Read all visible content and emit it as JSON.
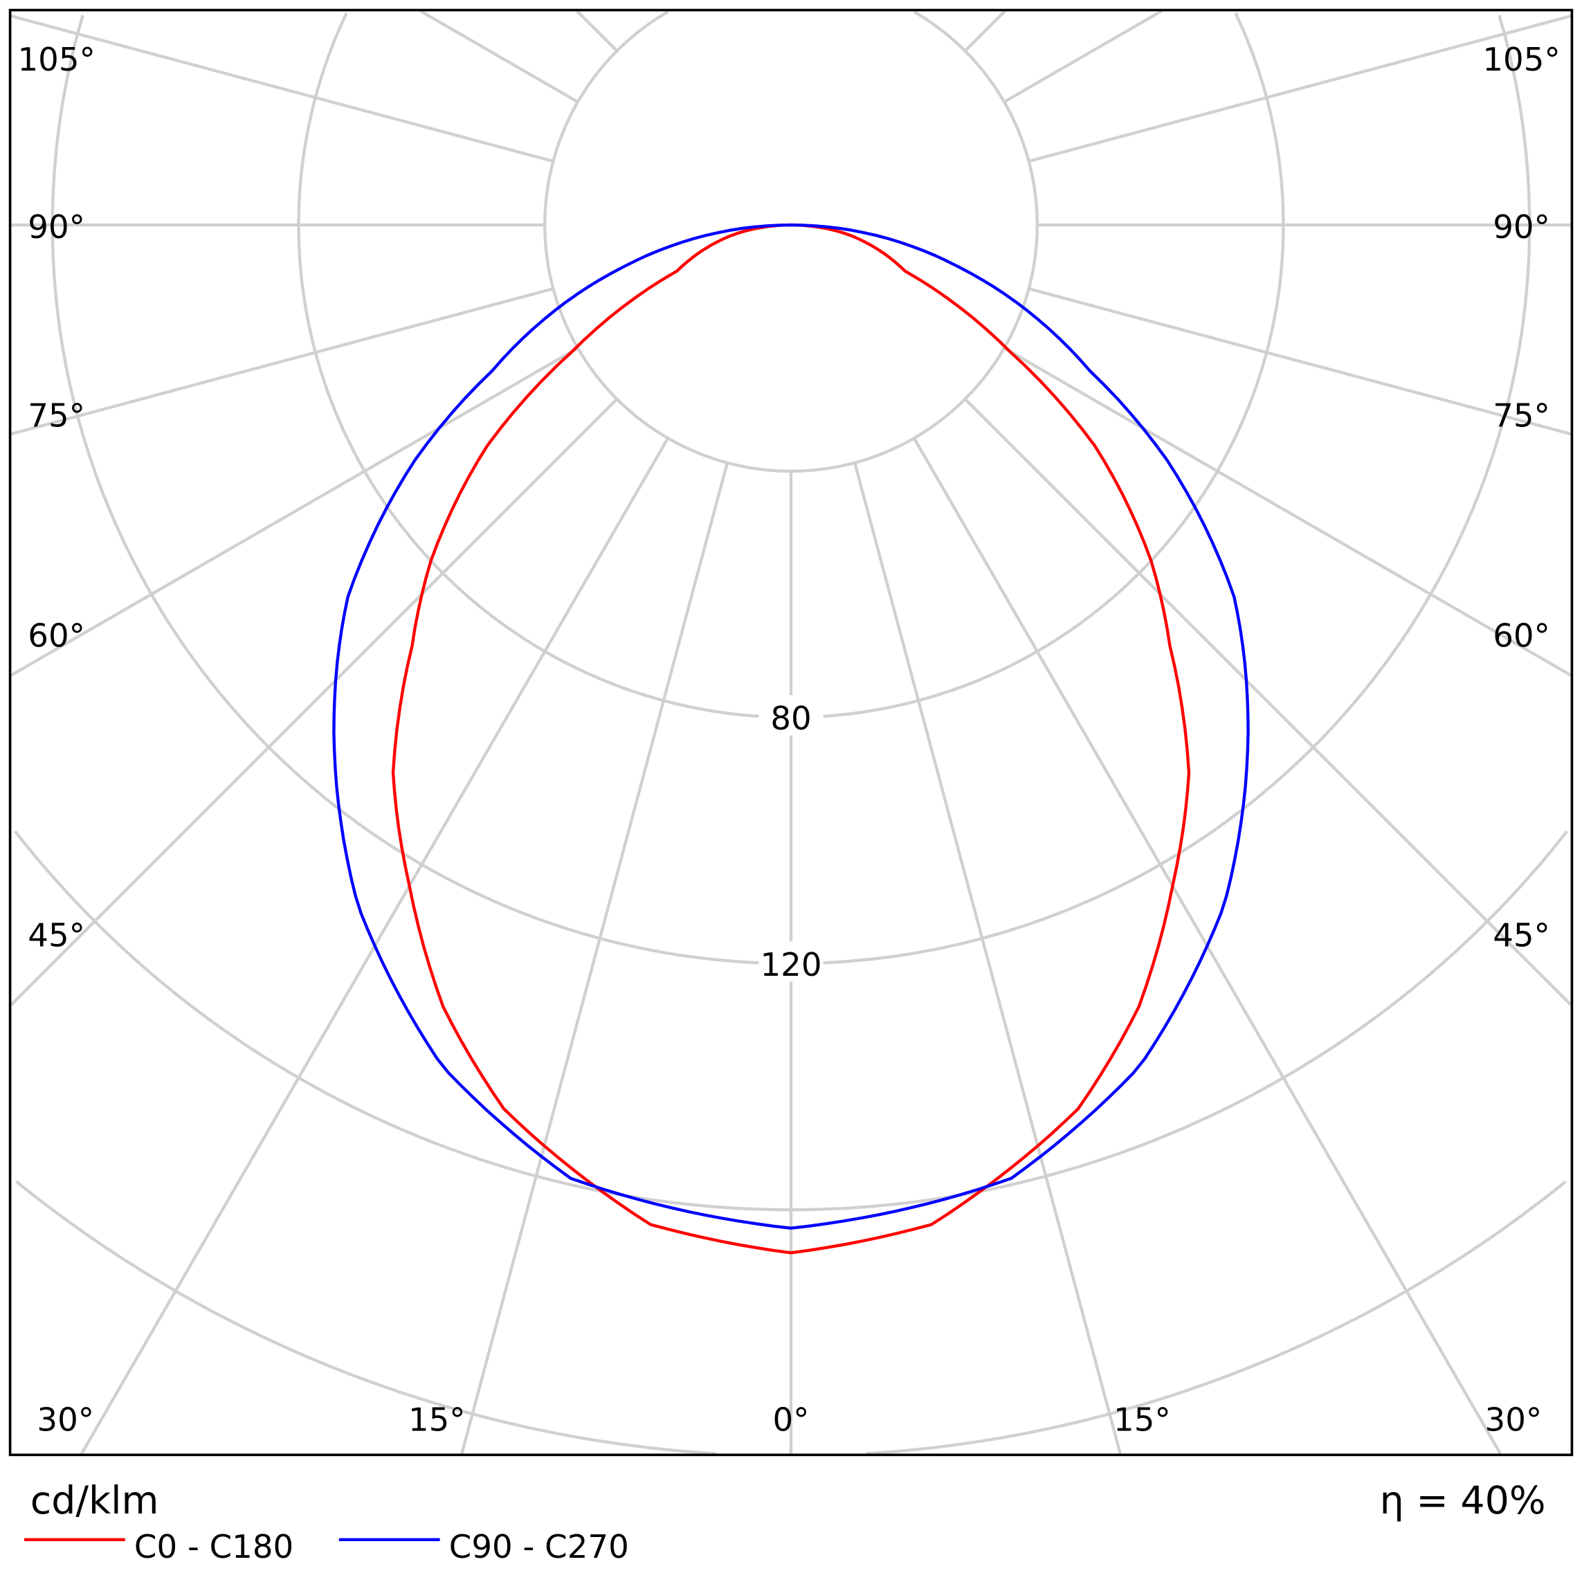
{
  "chart_data": {
    "type": "polar",
    "unit_label": "cd/klm",
    "efficiency_label": "η = 40%",
    "radial_ticks": [
      {
        "value": 80,
        "label": "80"
      },
      {
        "value": 120,
        "label": "120"
      }
    ],
    "ring_step": 40,
    "grid": true,
    "angle_step_deg": 15,
    "angle_labels_left": [
      "105°",
      "90°",
      "75°",
      "60°",
      "45°",
      "30°",
      "15°"
    ],
    "angle_labels_right": [
      "105°",
      "90°",
      "75°",
      "60°",
      "45°",
      "30°",
      "15°"
    ],
    "angle_label_center": "0°",
    "legend_position": "bottom-left",
    "series": [
      {
        "name": "C0 - C180",
        "color": "#ff0000",
        "angles_deg": [
          0,
          8,
          18,
          24,
          30,
          36,
          42,
          47,
          54,
          60,
          68,
          81,
          90
        ],
        "values": [
          167,
          164,
          151,
          139,
          124,
          110,
          92,
          80,
          61,
          41,
          20,
          9,
          0
        ]
      },
      {
        "name": "C90 - C270",
        "color": "#0000ff",
        "angles_deg": [
          0,
          13,
          22.5,
          32.5,
          42,
          50,
          58,
          64,
          76,
          90
        ],
        "values": [
          163,
          159,
          148,
          131,
          111,
          94,
          72,
          54,
          28,
          0
        ]
      }
    ]
  }
}
